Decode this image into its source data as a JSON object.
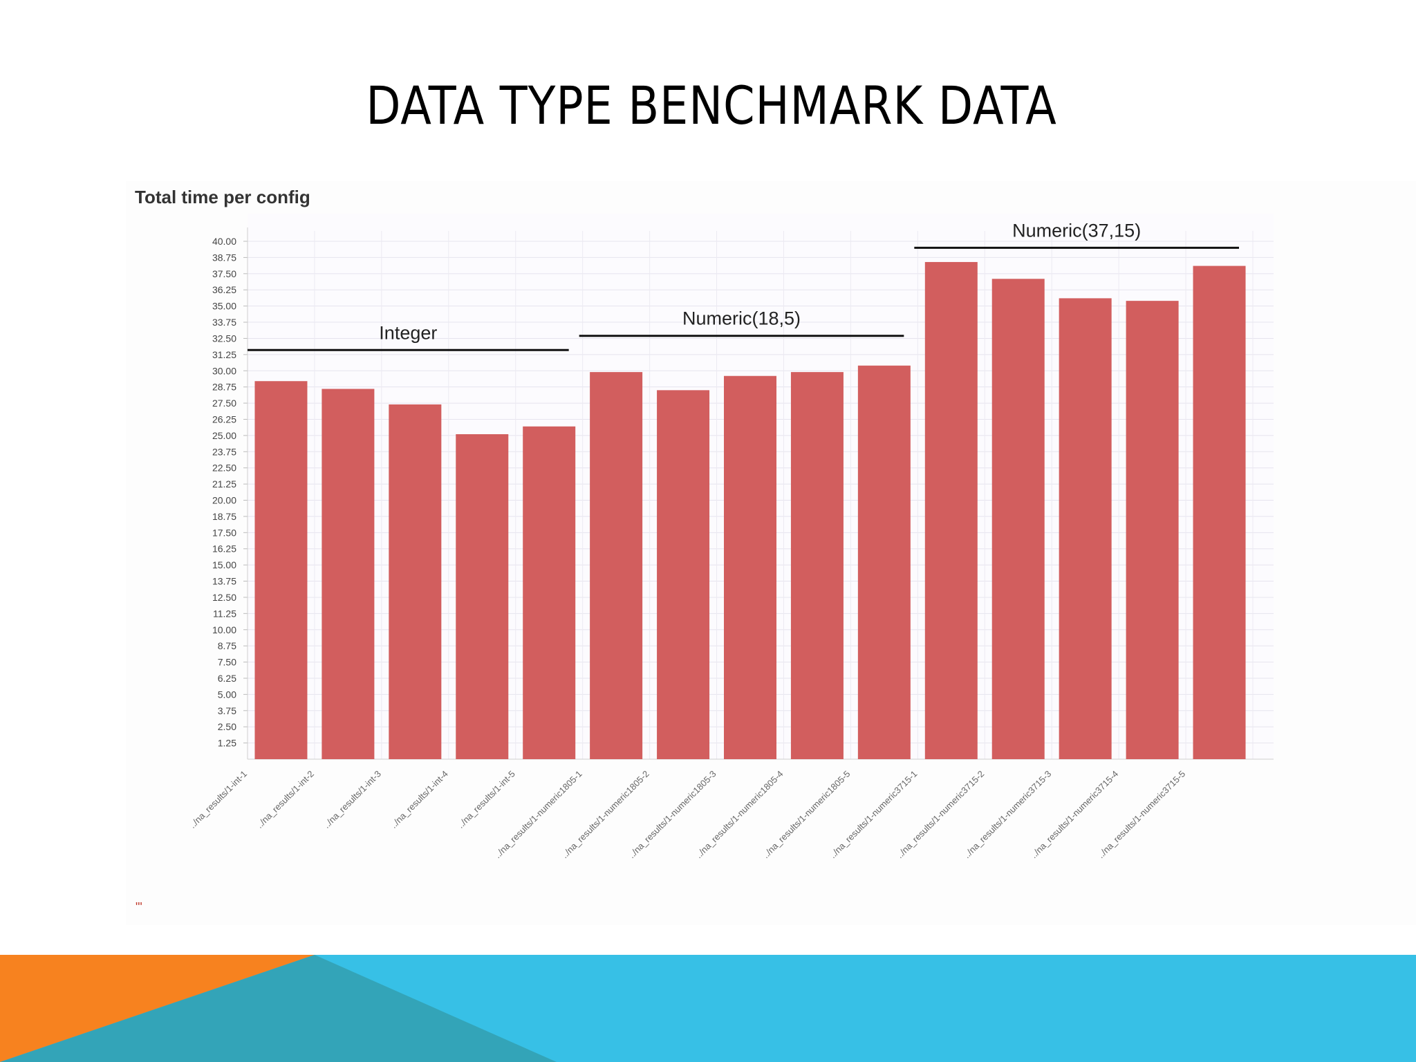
{
  "slide": {
    "title": "DATA TYPE BENCHMARK DATA"
  },
  "colors": {
    "bar": "#d25e5e",
    "footer_blue": "#37c0e6",
    "footer_orange": "#f7821f",
    "footer_teal": "#33a4b8"
  },
  "chart_data": {
    "type": "bar",
    "title": "Total time per config",
    "xlabel": "",
    "ylabel": "",
    "ylim": [
      0,
      40
    ],
    "y_ticks": [
      "1.25",
      "2.50",
      "3.75",
      "5.00",
      "6.25",
      "7.50",
      "8.75",
      "10.00",
      "11.25",
      "12.50",
      "13.75",
      "15.00",
      "16.25",
      "17.50",
      "18.75",
      "20.00",
      "21.25",
      "22.50",
      "23.75",
      "25.00",
      "26.25",
      "27.50",
      "28.75",
      "30.00",
      "31.25",
      "32.50",
      "33.75",
      "35.00",
      "36.25",
      "37.50",
      "38.75",
      "40.00"
    ],
    "grid": true,
    "categories": [
      "../na_results/1-int-1",
      "../na_results/1-int-2",
      "../na_results/1-int-3",
      "../na_results/1-int-4",
      "../na_results/1-int-5",
      "../na_results/1-numeric1805-1",
      "../na_results/1-numeric1805-2",
      "../na_results/1-numeric1805-3",
      "../na_results/1-numeric1805-4",
      "../na_results/1-numeric1805-5",
      "../na_results/1-numeric3715-1",
      "../na_results/1-numeric3715-2",
      "../na_results/1-numeric3715-3",
      "../na_results/1-numeric3715-4",
      "../na_results/1-numeric3715-5"
    ],
    "values": [
      29.2,
      28.6,
      27.4,
      25.1,
      25.7,
      29.9,
      28.5,
      29.6,
      29.9,
      30.4,
      38.4,
      37.1,
      35.6,
      35.4,
      38.1
    ],
    "annotations": [
      {
        "text": "Integer",
        "from": 0,
        "to": 4,
        "y": 31.6
      },
      {
        "text": "Numeric(18,5)",
        "from": 5,
        "to": 9,
        "y": 32.7
      },
      {
        "text": "Numeric(37,15)",
        "from": 10,
        "to": 14,
        "y": 39.5
      }
    ]
  },
  "stray_mark": "\"'"
}
